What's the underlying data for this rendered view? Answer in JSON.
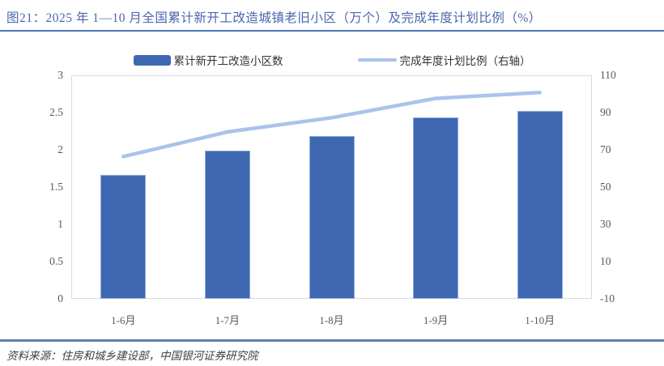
{
  "figure": {
    "title": "图21：2025 年 1—10 月全国累计新开工改造城镇老旧小区（万个）及完成年度计划比例（%）",
    "source": "资料来源：住房和城乡建设部，中国银河证券研究院"
  },
  "legend": {
    "items": [
      {
        "label": "累计新开工改造小区数",
        "type": "bar"
      },
      {
        "label": "完成年度计划比例（右轴）",
        "type": "line"
      }
    ]
  },
  "chart_data": {
    "type": "bar+line combo",
    "categories": [
      "1-6月",
      "1-7月",
      "1-8月",
      "1-9月",
      "1-10月"
    ],
    "series": [
      {
        "name": "累计新开工改造小区数",
        "type": "bar",
        "axis": "left",
        "unit": "万个",
        "values": [
          1.66,
          1.99,
          2.18,
          2.44,
          2.52
        ]
      },
      {
        "name": "完成年度计划比例（右轴）",
        "type": "line",
        "axis": "right",
        "unit": "%",
        "values": [
          66.4,
          79.6,
          87.2,
          97.6,
          100.8
        ]
      }
    ],
    "left_axis": {
      "min": 0,
      "max": 3,
      "tick_labels": [
        "0",
        "0.5",
        "1",
        "1.5",
        "2",
        "2.5",
        "3"
      ]
    },
    "right_axis": {
      "min": -10,
      "max": 110,
      "tick_labels": [
        "-10",
        "10",
        "30",
        "50",
        "70",
        "90",
        "110"
      ]
    },
    "grid": false,
    "legend_position": "top"
  },
  "colors": {
    "bar": "#3E68B1",
    "bar_border": "#8FAAD9",
    "line": "#A9C3EB",
    "title_text": "#4C66AE",
    "rule_top": "#4C74B8",
    "rule_bottom": "#5E7EB2",
    "tick_text": "#595959",
    "legend_text": "#333333",
    "source_text": "#3F3F3F",
    "plot_border": "#D9D9D9"
  }
}
